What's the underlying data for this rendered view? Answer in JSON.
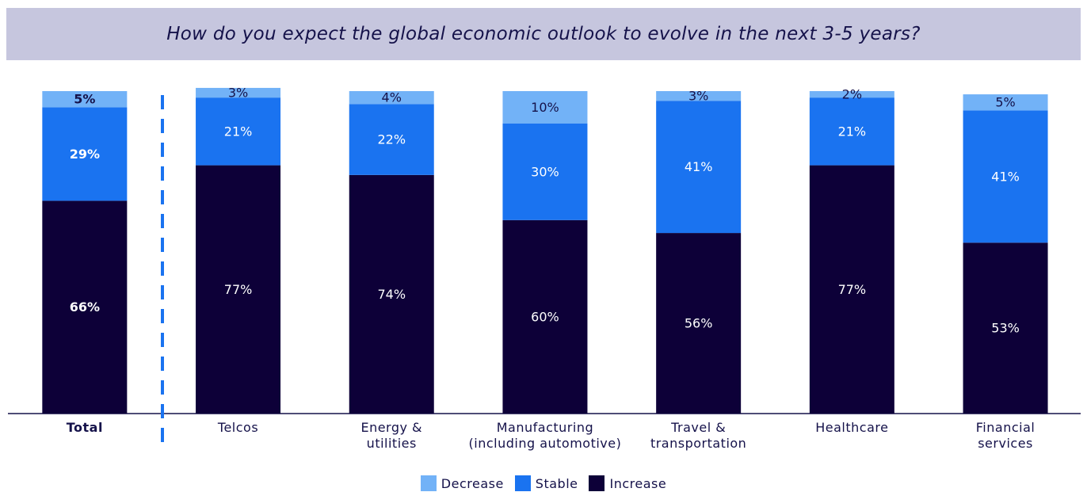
{
  "chart_data": {
    "type": "stacked_bar",
    "title": "How do you expect the global economic outlook to evolve in the next 3-5 years?",
    "categories": [
      "Total",
      "Telcos",
      "Energy &\nutilities",
      "Manufacturing\n(including automotive)",
      "Travel &\ntransportation",
      "Healthcare",
      "Financial\nservices"
    ],
    "series": [
      {
        "name": "Increase",
        "color": "#0d0038",
        "values": [
          66,
          77,
          74,
          60,
          56,
          77,
          53
        ],
        "value_labels": [
          "66%",
          "77%",
          "74%",
          "60%",
          "56%",
          "77%",
          "53%"
        ]
      },
      {
        "name": "Stable",
        "color": "#1a73f0",
        "values": [
          29,
          21,
          22,
          30,
          41,
          21,
          41
        ],
        "value_labels": [
          "29%",
          "21%",
          "22%",
          "30%",
          "41%",
          "21%",
          "41%"
        ]
      },
      {
        "name": "Decrease",
        "color": "#72b2f7",
        "values": [
          5,
          3,
          4,
          10,
          3,
          2,
          5
        ],
        "value_labels": [
          "5%",
          "3%",
          "4%",
          "10%",
          "3%",
          "2%",
          "5%"
        ]
      }
    ],
    "legend_order": [
      "Decrease",
      "Stable",
      "Increase"
    ],
    "ylim": [
      0,
      100
    ]
  }
}
